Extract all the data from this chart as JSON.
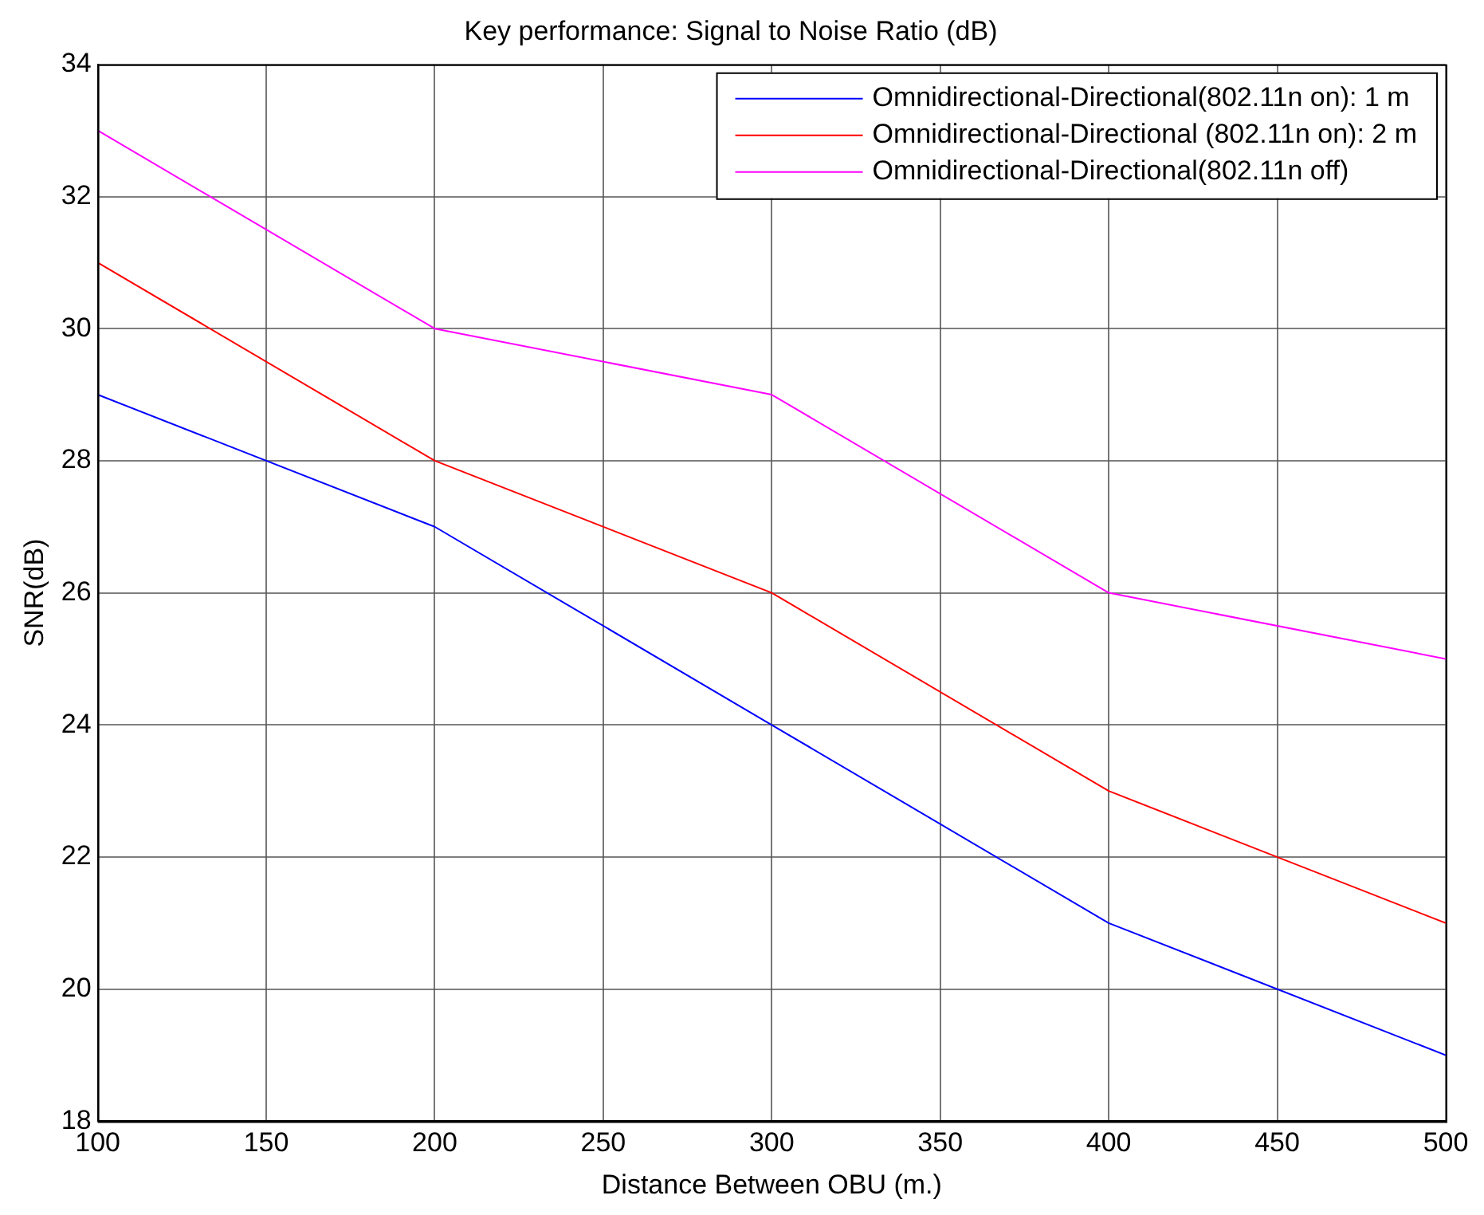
{
  "chart_data": {
    "type": "line",
    "title": "Key performance: Signal to Noise Ratio (dB)",
    "xlabel": "Distance Between OBU (m.)",
    "ylabel": "SNR(dB)",
    "x": [
      100,
      200,
      300,
      400,
      500
    ],
    "series": [
      {
        "name": "Omnidirectional-Directional(802.11n on): 1 m",
        "color": "#0000ff",
        "values": [
          29,
          27,
          24,
          21,
          19
        ]
      },
      {
        "name": "Omnidirectional-Directional (802.11n on): 2 m",
        "color": "#ff0000",
        "values": [
          31,
          28,
          26,
          23,
          21
        ]
      },
      {
        "name": "Omnidirectional-Directional(802.11n off)",
        "color": "#ff00ff",
        "values": [
          33,
          30,
          29,
          26,
          25
        ]
      }
    ],
    "xlim": [
      100,
      500
    ],
    "xticks": [
      100,
      150,
      200,
      250,
      300,
      350,
      400,
      450,
      500
    ],
    "ylim": [
      18,
      34
    ],
    "yticks": [
      18,
      20,
      22,
      24,
      26,
      28,
      30,
      32,
      34
    ],
    "grid": true,
    "legend": "top right",
    "marker": "none",
    "line_style": "solid"
  }
}
